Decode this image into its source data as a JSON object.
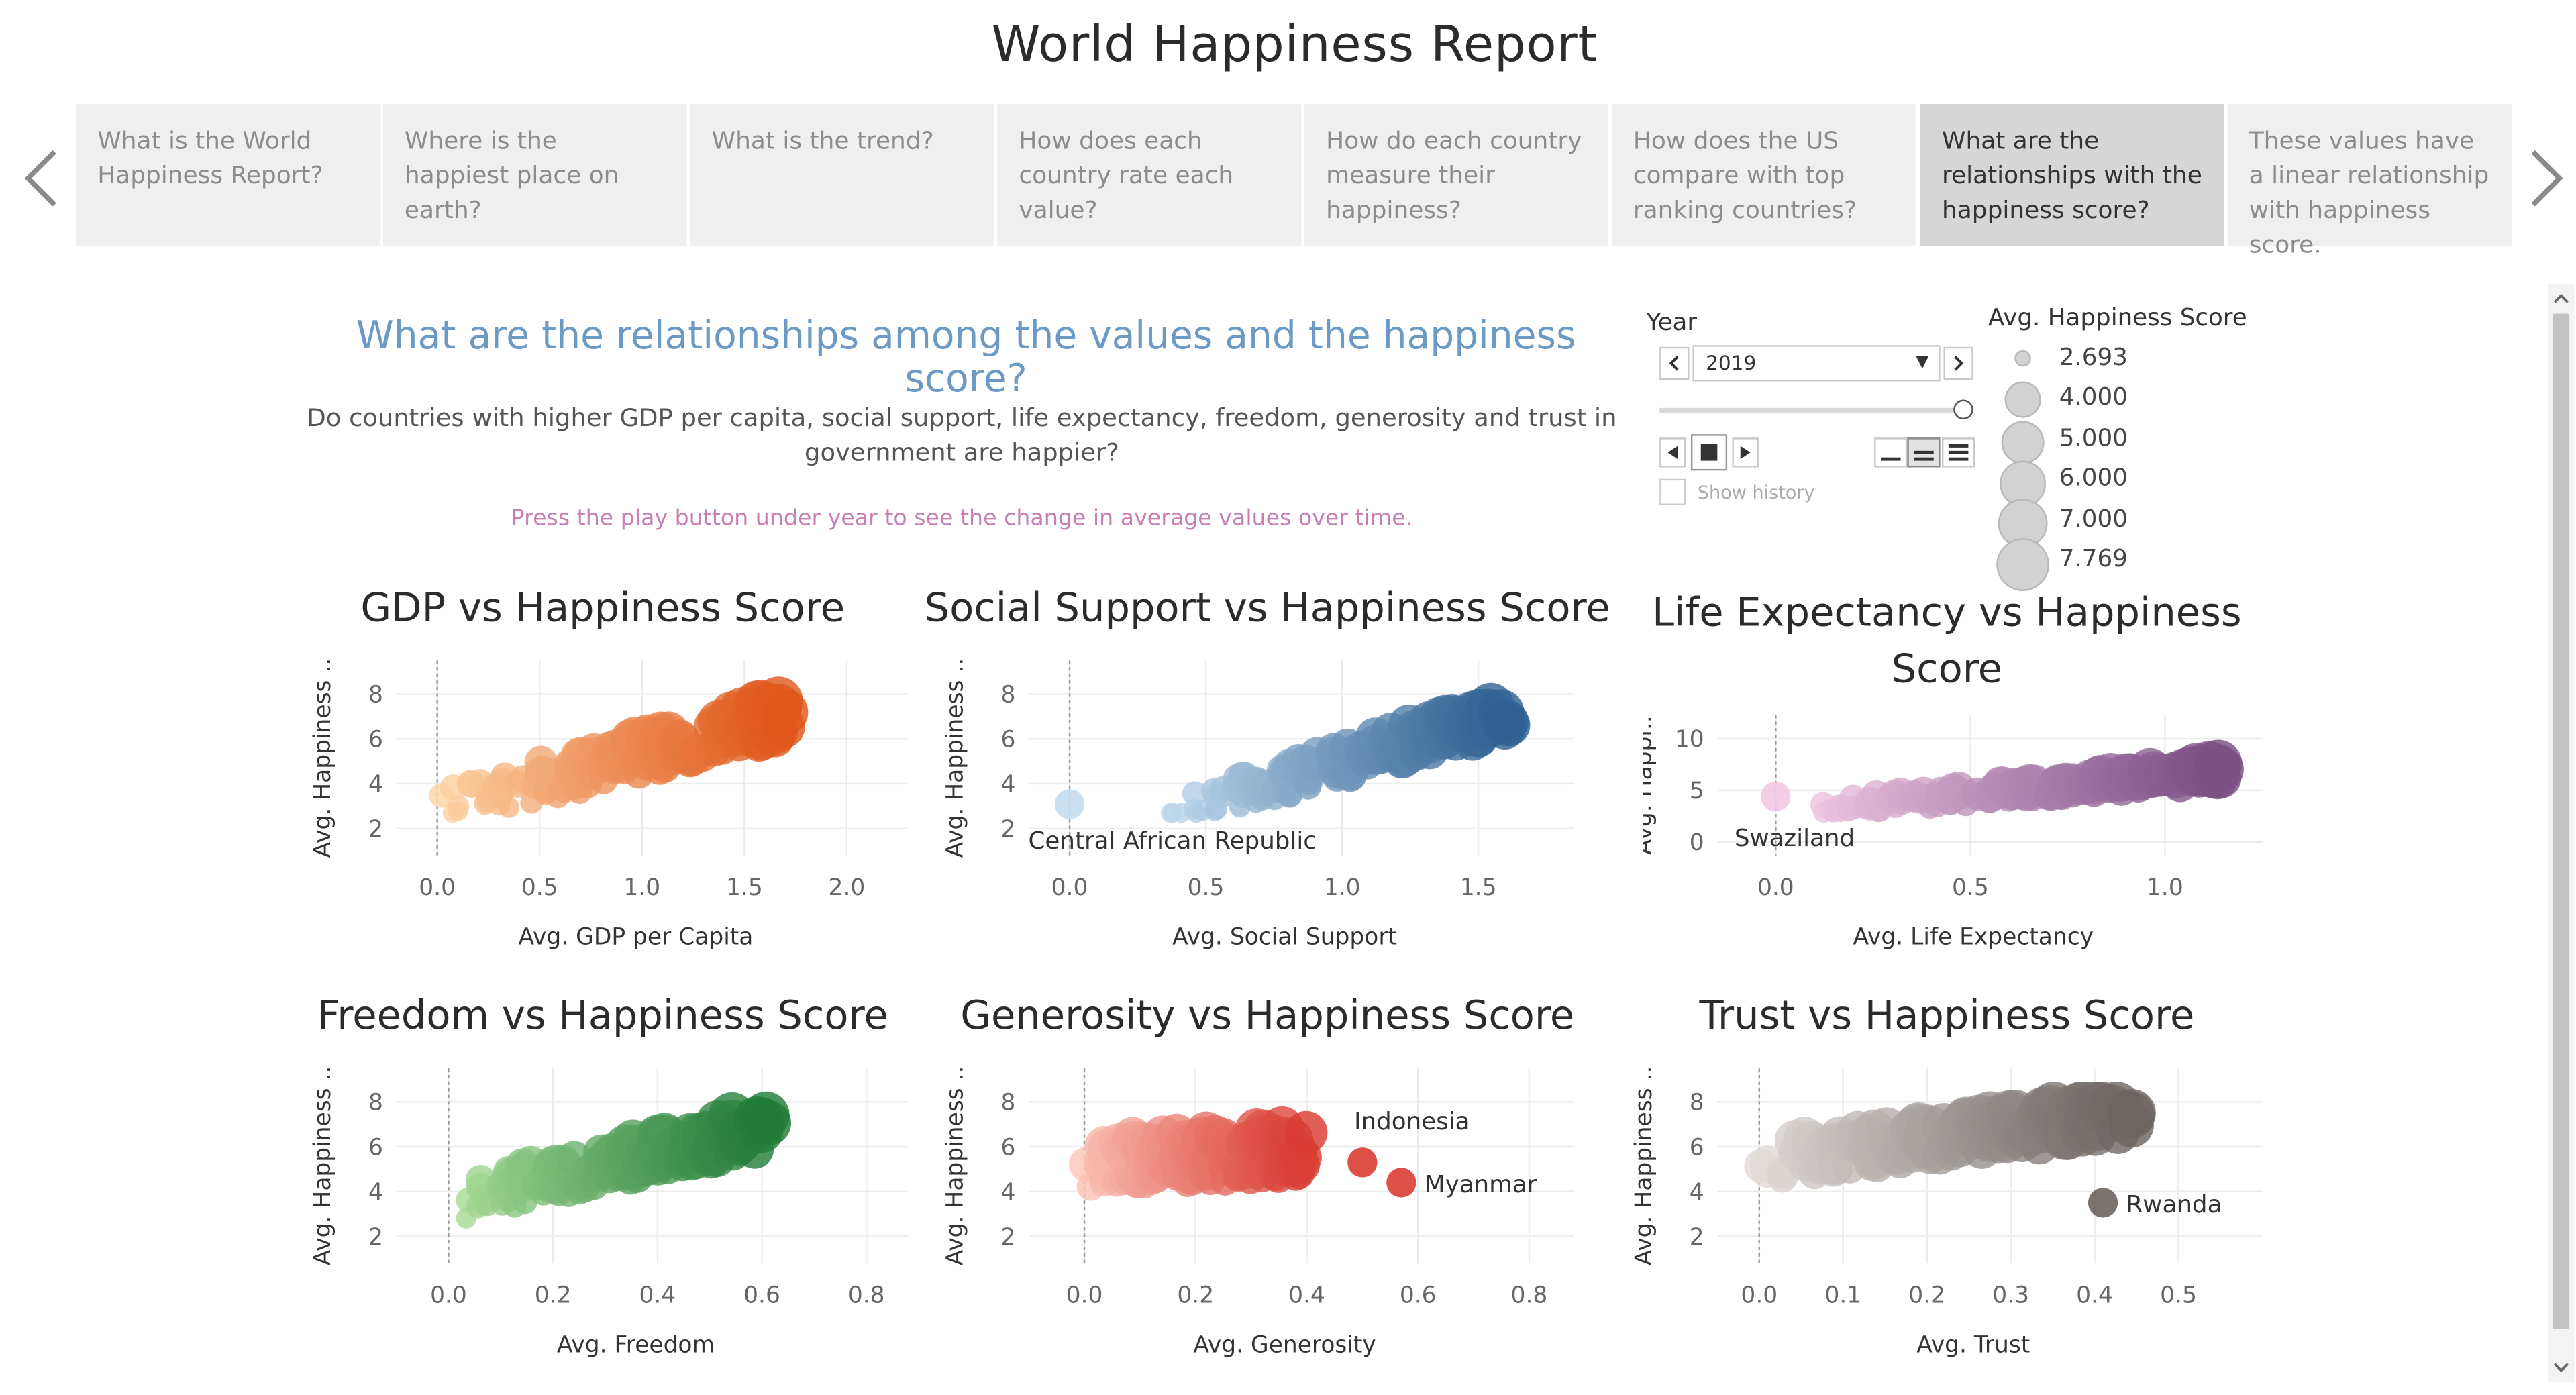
{
  "page": {
    "title": "World Happiness Report"
  },
  "story": {
    "active_index": 6,
    "tabs": [
      "What is the World Happiness Report?",
      "Where is the happiest place on earth?",
      "What is the trend?",
      "How does each country rate each value?",
      "How do each country measure their happiness?",
      "How does the US compare with top ranking countries?",
      "What are the relationships with the happiness score?",
      "These values have a linear relationship with happiness score."
    ]
  },
  "heading": {
    "question": "What are the relationships among the values and the happiness score?",
    "description": "Do countries with higher GDP per capita, social support, life expectancy, freedom, generosity and trust in government are happier?",
    "hint": "Press the play button under year to see the change  in average values over time."
  },
  "year_filter": {
    "title": "Year",
    "selected": "2019",
    "show_history_label": "Show history",
    "show_history_checked": false,
    "slider_position_fraction": 1.0
  },
  "legend": {
    "title": "Avg. Happiness Score",
    "items": [
      "2.693",
      "4.000",
      "5.000",
      "6.000",
      "7.000",
      "7.769"
    ]
  },
  "chart_data": [
    {
      "type": "scatter",
      "title": "GDP vs Happiness Score",
      "xlabel": "Avg. GDP per Capita",
      "ylabel": "Avg. Happiness ..",
      "xticks": [
        "0.0",
        "0.5",
        "1.0",
        "1.5",
        "2.0"
      ],
      "yticks": [
        "2",
        "4",
        "6",
        "8"
      ],
      "xlim": [
        -0.2,
        2.3
      ],
      "ylim": [
        0.8,
        9.5
      ],
      "colors": [
        "#fdd7a8",
        "#e0571a"
      ],
      "size_by": "Avg. Happiness Score",
      "labels": []
    },
    {
      "type": "scatter",
      "title": "Social Support vs Happiness Score",
      "xlabel": "Avg. Social Support",
      "ylabel": "Avg. Happiness ..",
      "xticks": [
        "0.0",
        "0.5",
        "1.0",
        "1.5"
      ],
      "yticks": [
        "2",
        "4",
        "6",
        "8"
      ],
      "xlim": [
        -0.15,
        1.85
      ],
      "ylim": [
        0.8,
        9.5
      ],
      "colors": [
        "#c4ddef",
        "#2e5f92"
      ],
      "size_by": "Avg. Happiness Score",
      "labels": [
        {
          "text": "Central African Republic",
          "x": 0.0,
          "y": 3.08
        }
      ]
    },
    {
      "type": "scatter",
      "title": "Life Expectancy vs Happiness Score",
      "xlabel": "Avg. Life Expectancy",
      "ylabel": "Avg. Happi..",
      "xticks": [
        "0.0",
        "0.5",
        "1.0"
      ],
      "yticks": [
        "0",
        "5",
        "10"
      ],
      "xlim": [
        -0.15,
        1.25
      ],
      "ylim": [
        -1.3,
        12.3
      ],
      "colors": [
        "#f1c8e4",
        "#7a4f84"
      ],
      "size_by": "Avg. Happiness Score",
      "labels": [
        {
          "text": "Swaziland",
          "x": 0.0,
          "y": 4.4
        }
      ]
    },
    {
      "type": "scatter",
      "title": "Freedom vs Happiness Score",
      "xlabel": "Avg. Freedom",
      "ylabel": "Avg. Happiness ..",
      "xticks": [
        "0.0",
        "0.2",
        "0.4",
        "0.6",
        "0.8"
      ],
      "yticks": [
        "2",
        "4",
        "6",
        "8"
      ],
      "xlim": [
        -0.1,
        0.88
      ],
      "ylim": [
        0.8,
        9.5
      ],
      "colors": [
        "#a9dc97",
        "#1f7a37"
      ],
      "size_by": "Avg. Happiness Score",
      "labels": []
    },
    {
      "type": "scatter",
      "title": "Generosity vs Happiness Score",
      "xlabel": "Avg. Generosity",
      "ylabel": "Avg. Happiness ..",
      "xticks": [
        "0.0",
        "0.2",
        "0.4",
        "0.6",
        "0.8"
      ],
      "yticks": [
        "2",
        "4",
        "6",
        "8"
      ],
      "xlim": [
        -0.1,
        0.88
      ],
      "ylim": [
        0.8,
        9.5
      ],
      "colors": [
        "#fcc8bb",
        "#d93c33"
      ],
      "size_by": "Avg. Happiness Score",
      "labels": [
        {
          "text": "Indonesia",
          "x": 0.5,
          "y": 5.3
        },
        {
          "text": "Myanmar",
          "x": 0.57,
          "y": 4.4
        }
      ]
    },
    {
      "type": "scatter",
      "title": "Trust vs Happiness Score",
      "xlabel": "Avg. Trust",
      "ylabel": "Avg. Happiness ..",
      "xticks": [
        "0.0",
        "0.1",
        "0.2",
        "0.3",
        "0.4",
        "0.5"
      ],
      "yticks": [
        "2",
        "4",
        "6",
        "8"
      ],
      "xlim": [
        -0.05,
        0.6
      ],
      "ylim": [
        0.8,
        9.5
      ],
      "colors": [
        "#e4dedb",
        "#6b6461"
      ],
      "size_by": "Avg. Happiness Score",
      "labels": [
        {
          "text": "Rwanda",
          "x": 0.41,
          "y": 3.5
        }
      ]
    }
  ]
}
